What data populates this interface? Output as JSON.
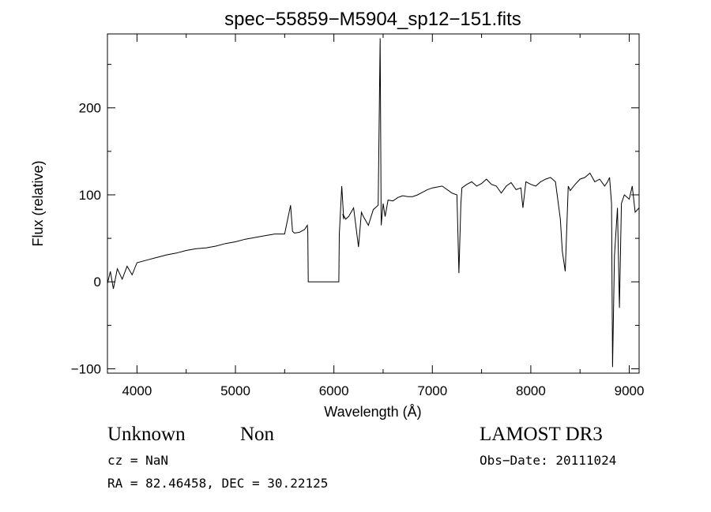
{
  "chart_data": {
    "type": "line",
    "title": "spec−55859−M5904_sp12−151.fits",
    "xlabel": "Wavelength (Å)",
    "ylabel": "Flux (relative)",
    "xlim": [
      3700,
      9100
    ],
    "ylim": [
      -105,
      285
    ],
    "xticks": [
      4000,
      5000,
      6000,
      7000,
      8000,
      9000
    ],
    "xtick_labels": [
      "4000",
      "5000",
      "6000",
      "7000",
      "8000",
      "9000"
    ],
    "yticks": [
      -100,
      0,
      100,
      200
    ],
    "ytick_labels": [
      "−100",
      "0",
      "100",
      "200"
    ],
    "grid": false,
    "legend": "none",
    "series": [
      {
        "x": [
          3700,
          3730,
          3760,
          3800,
          3850,
          3900,
          3950,
          4000,
          4100,
          4200,
          4300,
          4400,
          4500,
          4600,
          4700,
          4800,
          4900,
          5000,
          5100,
          5200,
          5300,
          5400,
          5500,
          5560,
          5580,
          5600,
          5650,
          5700,
          5730,
          5735,
          5740,
          6050,
          6055,
          6060,
          6080,
          6100,
          6090,
          6120,
          6150,
          6200,
          6250,
          6280,
          6300,
          6350,
          6400,
          6450,
          6470,
          6480,
          6500,
          6520,
          6550,
          6600,
          6650,
          6700,
          6750,
          6800,
          6850,
          6900,
          6950,
          7000,
          7100,
          7200,
          7250,
          7270,
          7290,
          7300,
          7350,
          7400,
          7450,
          7500,
          7550,
          7600,
          7650,
          7700,
          7750,
          7800,
          7850,
          7900,
          7920,
          7950,
          8000,
          8050,
          8100,
          8150,
          8200,
          8250,
          8300,
          8320,
          8350,
          8380,
          8400,
          8450,
          8500,
          8550,
          8600,
          8650,
          8700,
          8750,
          8780,
          8800,
          8820,
          8830,
          8850,
          8880,
          8900,
          8920,
          8950,
          9000,
          9030,
          9060,
          9100
        ],
        "y": [
          -2,
          12,
          -8,
          15,
          3,
          18,
          8,
          22,
          25,
          28,
          31,
          33,
          36,
          38,
          39,
          41,
          44,
          46,
          49,
          51,
          53,
          55,
          55,
          88,
          58,
          56,
          57,
          60,
          65,
          58,
          0,
          0,
          55,
          65,
          110,
          72,
          78,
          72,
          75,
          85,
          40,
          80,
          75,
          65,
          83,
          88,
          280,
          65,
          90,
          75,
          94,
          93,
          97,
          99,
          98,
          98,
          100,
          103,
          106,
          108,
          110,
          102,
          100,
          10,
          90,
          108,
          112,
          115,
          110,
          113,
          118,
          112,
          110,
          102,
          110,
          114,
          106,
          108,
          85,
          115,
          112,
          110,
          115,
          118,
          120,
          115,
          72,
          35,
          12,
          110,
          105,
          112,
          118,
          120,
          125,
          115,
          118,
          110,
          115,
          120,
          90,
          -98,
          30,
          85,
          -30,
          90,
          100,
          95,
          110,
          80,
          85
        ]
      }
    ]
  },
  "info": {
    "object_class": "Unknown",
    "object_subclass": "Non",
    "survey": "LAMOST DR3",
    "cz": "cz = NaN",
    "obs_date": "Obs−Date: 20111024",
    "coords": "RA =  82.46458, DEC =  30.22125"
  }
}
